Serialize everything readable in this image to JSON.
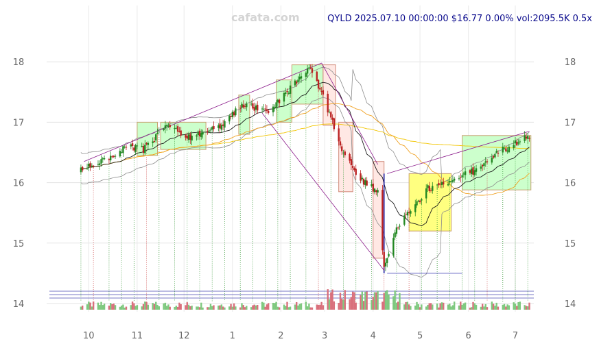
{
  "watermark": "cafata.com",
  "header": "QYLD 2025.07.10 00:00:00 $16.77 0.00% vol:2095.5K 0.5x",
  "chart_data": {
    "type": "candlestick",
    "ticker": "QYLD",
    "last_date": "2025.07.10",
    "last_price": 16.77,
    "change_pct": 0.0,
    "volume": "2095.5K",
    "volume_ratio": "0.5x",
    "x_ticks": [
      "10",
      "11",
      "12",
      "1",
      "2",
      "3",
      "4",
      "5",
      "6",
      "7"
    ],
    "y_ticks": [
      14,
      15,
      16,
      17,
      18
    ],
    "ylim": [
      13.9,
      18.9
    ],
    "grid": true,
    "price_path": [
      [
        "2024-09-26",
        16.2
      ],
      [
        "2024-10-10",
        16.35
      ],
      [
        "2024-10-24",
        16.6
      ],
      [
        "2024-11-05",
        16.55
      ],
      [
        "2024-11-20",
        16.95
      ],
      [
        "2024-12-05",
        16.75
      ],
      [
        "2024-12-24",
        16.95
      ],
      [
        "2025-01-08",
        17.3
      ],
      [
        "2025-01-24",
        17.15
      ],
      [
        "2025-02-08",
        17.6
      ],
      [
        "2025-02-20",
        17.9
      ],
      [
        "2025-03-04",
        17.15
      ],
      [
        "2025-03-12",
        16.5
      ],
      [
        "2025-03-24",
        16.05
      ],
      [
        "2025-04-04",
        15.85
      ],
      [
        "2025-04-08",
        14.6
      ],
      [
        "2025-04-15",
        15.2
      ],
      [
        "2025-04-24",
        15.5
      ],
      [
        "2025-05-06",
        15.9
      ],
      [
        "2025-05-22",
        16.05
      ],
      [
        "2025-06-05",
        16.2
      ],
      [
        "2025-06-20",
        16.5
      ],
      [
        "2025-07-10",
        16.77
      ]
    ],
    "boxes": [
      {
        "from": "2024-11-01",
        "to": "2024-11-14",
        "low": 16.45,
        "high": 17.0,
        "color": "green"
      },
      {
        "from": "2024-11-16",
        "to": "2024-12-15",
        "low": 16.55,
        "high": 17.0,
        "color": "green"
      },
      {
        "from": "2025-01-05",
        "to": "2025-01-12",
        "low": 16.8,
        "high": 17.45,
        "color": "green"
      },
      {
        "from": "2025-01-29",
        "to": "2025-02-08",
        "low": 17.0,
        "high": 17.7,
        "color": "green"
      },
      {
        "from": "2025-02-08",
        "to": "2025-02-28",
        "low": 17.3,
        "high": 17.95,
        "color": "green"
      },
      {
        "from": "2025-02-28",
        "to": "2025-03-08",
        "low": 16.95,
        "high": 17.95,
        "color": "red"
      },
      {
        "from": "2025-03-10",
        "to": "2025-03-19",
        "low": 15.85,
        "high": 17.0,
        "color": "red"
      },
      {
        "from": "2025-04-01",
        "to": "2025-04-08",
        "low": 14.75,
        "high": 16.35,
        "color": "red"
      },
      {
        "from": "2025-04-24",
        "to": "2025-05-21",
        "low": 15.2,
        "high": 16.15,
        "color": "yellow"
      },
      {
        "from": "2025-05-28",
        "to": "2025-07-11",
        "low": 15.88,
        "high": 16.78,
        "color": "green"
      }
    ]
  }
}
